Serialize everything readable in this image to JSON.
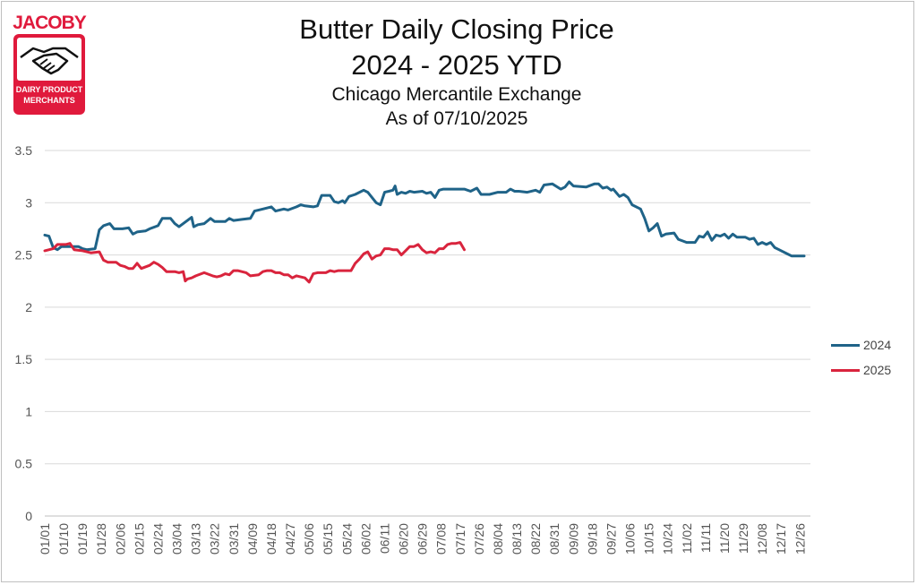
{
  "chart_data": {
    "type": "line",
    "title": "Butter Daily Closing Price",
    "title_line2": "2024 - 2025 YTD",
    "subtitle": "Chicago Mercantile Exchange",
    "subtitle_line2": "As of 07/10/2025",
    "xlabel": "",
    "ylabel": "",
    "ylim": [
      0,
      3.5
    ],
    "yticks": [
      "0",
      "0.5",
      "1",
      "1.5",
      "2",
      "2.5",
      "3",
      "3.5"
    ],
    "xlim": [
      0,
      365
    ],
    "xticks": [
      {
        "label": "01/01",
        "x": 0
      },
      {
        "label": "01/10",
        "x": 9
      },
      {
        "label": "01/19",
        "x": 18
      },
      {
        "label": "01/28",
        "x": 27
      },
      {
        "label": "02/06",
        "x": 36
      },
      {
        "label": "02/15",
        "x": 45
      },
      {
        "label": "02/24",
        "x": 54
      },
      {
        "label": "03/04",
        "x": 63
      },
      {
        "label": "03/13",
        "x": 72
      },
      {
        "label": "03/22",
        "x": 81
      },
      {
        "label": "03/31",
        "x": 90
      },
      {
        "label": "04/09",
        "x": 99
      },
      {
        "label": "04/18",
        "x": 108
      },
      {
        "label": "04/27",
        "x": 117
      },
      {
        "label": "05/06",
        "x": 126
      },
      {
        "label": "05/15",
        "x": 135
      },
      {
        "label": "05/24",
        "x": 144
      },
      {
        "label": "06/02",
        "x": 153
      },
      {
        "label": "06/11",
        "x": 162
      },
      {
        "label": "06/20",
        "x": 171
      },
      {
        "label": "06/29",
        "x": 180
      },
      {
        "label": "07/08",
        "x": 189
      },
      {
        "label": "07/17",
        "x": 198
      },
      {
        "label": "07/26",
        "x": 207
      },
      {
        "label": "08/04",
        "x": 216
      },
      {
        "label": "08/13",
        "x": 225
      },
      {
        "label": "08/22",
        "x": 234
      },
      {
        "label": "08/31",
        "x": 243
      },
      {
        "label": "09/09",
        "x": 252
      },
      {
        "label": "09/18",
        "x": 261
      },
      {
        "label": "09/27",
        "x": 270
      },
      {
        "label": "10/06",
        "x": 279
      },
      {
        "label": "10/15",
        "x": 288
      },
      {
        "label": "10/24",
        "x": 297
      },
      {
        "label": "11/02",
        "x": 306
      },
      {
        "label": "11/11",
        "x": 315
      },
      {
        "label": "11/20",
        "x": 324
      },
      {
        "label": "11/29",
        "x": 333
      },
      {
        "label": "12/08",
        "x": 342
      },
      {
        "label": "12/17",
        "x": 351
      },
      {
        "label": "12/26",
        "x": 360
      }
    ],
    "grid": true,
    "legend_position": "right",
    "series": [
      {
        "name": "2024",
        "color": "#1f6388",
        "points": [
          [
            0,
            2.69
          ],
          [
            2,
            2.68
          ],
          [
            4,
            2.57
          ],
          [
            6,
            2.55
          ],
          [
            8,
            2.58
          ],
          [
            12,
            2.58
          ],
          [
            16,
            2.58
          ],
          [
            18,
            2.56
          ],
          [
            20,
            2.55
          ],
          [
            24,
            2.56
          ],
          [
            26,
            2.74
          ],
          [
            28,
            2.78
          ],
          [
            31,
            2.8
          ],
          [
            33,
            2.75
          ],
          [
            37,
            2.75
          ],
          [
            40,
            2.76
          ],
          [
            42,
            2.7
          ],
          [
            44,
            2.72
          ],
          [
            48,
            2.73
          ],
          [
            50,
            2.75
          ],
          [
            54,
            2.78
          ],
          [
            56,
            2.85
          ],
          [
            60,
            2.85
          ],
          [
            62,
            2.8
          ],
          [
            64,
            2.77
          ],
          [
            66,
            2.8
          ],
          [
            70,
            2.86
          ],
          [
            71,
            2.77
          ],
          [
            73,
            2.79
          ],
          [
            76,
            2.8
          ],
          [
            79,
            2.85
          ],
          [
            81,
            2.82
          ],
          [
            86,
            2.82
          ],
          [
            88,
            2.85
          ],
          [
            90,
            2.83
          ],
          [
            94,
            2.84
          ],
          [
            98,
            2.85
          ],
          [
            100,
            2.92
          ],
          [
            104,
            2.94
          ],
          [
            108,
            2.96
          ],
          [
            110,
            2.92
          ],
          [
            114,
            2.94
          ],
          [
            116,
            2.93
          ],
          [
            120,
            2.96
          ],
          [
            122,
            2.98
          ],
          [
            124,
            2.97
          ],
          [
            128,
            2.96
          ],
          [
            130,
            2.97
          ],
          [
            132,
            3.07
          ],
          [
            136,
            3.07
          ],
          [
            138,
            3.01
          ],
          [
            140,
            3.0
          ],
          [
            142,
            3.02
          ],
          [
            143,
            3.0
          ],
          [
            145,
            3.06
          ],
          [
            148,
            3.08
          ],
          [
            152,
            3.12
          ],
          [
            154,
            3.1
          ],
          [
            158,
            3.0
          ],
          [
            160,
            2.98
          ],
          [
            162,
            3.1
          ],
          [
            164,
            3.11
          ],
          [
            166,
            3.12
          ],
          [
            167,
            3.16
          ],
          [
            168,
            3.08
          ],
          [
            170,
            3.1
          ],
          [
            172,
            3.09
          ],
          [
            174,
            3.11
          ],
          [
            176,
            3.1
          ],
          [
            180,
            3.11
          ],
          [
            182,
            3.09
          ],
          [
            184,
            3.1
          ],
          [
            186,
            3.05
          ],
          [
            188,
            3.12
          ],
          [
            190,
            3.13
          ],
          [
            195,
            3.13
          ],
          [
            200,
            3.13
          ],
          [
            203,
            3.11
          ],
          [
            206,
            3.14
          ],
          [
            208,
            3.08
          ],
          [
            212,
            3.08
          ],
          [
            216,
            3.1
          ],
          [
            220,
            3.1
          ],
          [
            222,
            3.13
          ],
          [
            224,
            3.11
          ],
          [
            226,
            3.11
          ],
          [
            230,
            3.1
          ],
          [
            234,
            3.12
          ],
          [
            236,
            3.1
          ],
          [
            238,
            3.17
          ],
          [
            242,
            3.18
          ],
          [
            246,
            3.13
          ],
          [
            248,
            3.15
          ],
          [
            250,
            3.2
          ],
          [
            252,
            3.16
          ],
          [
            258,
            3.15
          ],
          [
            262,
            3.18
          ],
          [
            264,
            3.18
          ],
          [
            266,
            3.14
          ],
          [
            268,
            3.15
          ],
          [
            270,
            3.12
          ],
          [
            271,
            3.13
          ],
          [
            274,
            3.06
          ],
          [
            276,
            3.08
          ],
          [
            278,
            3.05
          ],
          [
            280,
            2.98
          ],
          [
            284,
            2.94
          ],
          [
            286,
            2.85
          ],
          [
            288,
            2.73
          ],
          [
            290,
            2.76
          ],
          [
            292,
            2.8
          ],
          [
            294,
            2.68
          ],
          [
            296,
            2.7
          ],
          [
            300,
            2.71
          ],
          [
            302,
            2.65
          ],
          [
            306,
            2.62
          ],
          [
            310,
            2.62
          ],
          [
            312,
            2.68
          ],
          [
            314,
            2.67
          ],
          [
            316,
            2.72
          ],
          [
            318,
            2.64
          ],
          [
            320,
            2.69
          ],
          [
            322,
            2.68
          ],
          [
            324,
            2.7
          ],
          [
            326,
            2.66
          ],
          [
            328,
            2.7
          ],
          [
            330,
            2.67
          ],
          [
            334,
            2.67
          ],
          [
            336,
            2.65
          ],
          [
            338,
            2.66
          ],
          [
            340,
            2.6
          ],
          [
            342,
            2.62
          ],
          [
            344,
            2.6
          ],
          [
            346,
            2.62
          ],
          [
            348,
            2.57
          ],
          [
            350,
            2.55
          ],
          [
            354,
            2.51
          ],
          [
            356,
            2.49
          ],
          [
            360,
            2.49
          ],
          [
            362,
            2.49
          ]
        ]
      },
      {
        "name": "2025",
        "color": "#d9243d",
        "points": [
          [
            0,
            2.54
          ],
          [
            4,
            2.56
          ],
          [
            6,
            2.6
          ],
          [
            10,
            2.6
          ],
          [
            12,
            2.61
          ],
          [
            14,
            2.55
          ],
          [
            18,
            2.54
          ],
          [
            22,
            2.52
          ],
          [
            26,
            2.53
          ],
          [
            28,
            2.45
          ],
          [
            30,
            2.43
          ],
          [
            32,
            2.43
          ],
          [
            34,
            2.43
          ],
          [
            36,
            2.4
          ],
          [
            38,
            2.39
          ],
          [
            40,
            2.37
          ],
          [
            42,
            2.37
          ],
          [
            44,
            2.42
          ],
          [
            46,
            2.37
          ],
          [
            50,
            2.4
          ],
          [
            52,
            2.43
          ],
          [
            54,
            2.41
          ],
          [
            56,
            2.38
          ],
          [
            58,
            2.34
          ],
          [
            60,
            2.34
          ],
          [
            62,
            2.34
          ],
          [
            64,
            2.33
          ],
          [
            66,
            2.34
          ],
          [
            67,
            2.25
          ],
          [
            68,
            2.27
          ],
          [
            70,
            2.28
          ],
          [
            72,
            2.3
          ],
          [
            76,
            2.33
          ],
          [
            80,
            2.3
          ],
          [
            82,
            2.29
          ],
          [
            84,
            2.3
          ],
          [
            86,
            2.32
          ],
          [
            88,
            2.31
          ],
          [
            90,
            2.35
          ],
          [
            92,
            2.35
          ],
          [
            96,
            2.33
          ],
          [
            98,
            2.3
          ],
          [
            102,
            2.31
          ],
          [
            104,
            2.34
          ],
          [
            106,
            2.35
          ],
          [
            108,
            2.35
          ],
          [
            110,
            2.33
          ],
          [
            112,
            2.33
          ],
          [
            114,
            2.31
          ],
          [
            116,
            2.31
          ],
          [
            118,
            2.28
          ],
          [
            120,
            2.3
          ],
          [
            124,
            2.28
          ],
          [
            126,
            2.24
          ],
          [
            128,
            2.32
          ],
          [
            130,
            2.33
          ],
          [
            134,
            2.33
          ],
          [
            136,
            2.35
          ],
          [
            138,
            2.34
          ],
          [
            140,
            2.35
          ],
          [
            144,
            2.35
          ],
          [
            146,
            2.35
          ],
          [
            148,
            2.42
          ],
          [
            150,
            2.46
          ],
          [
            152,
            2.51
          ],
          [
            154,
            2.53
          ],
          [
            156,
            2.46
          ],
          [
            158,
            2.49
          ],
          [
            160,
            2.5
          ],
          [
            162,
            2.56
          ],
          [
            164,
            2.56
          ],
          [
            166,
            2.55
          ],
          [
            168,
            2.55
          ],
          [
            170,
            2.5
          ],
          [
            172,
            2.54
          ],
          [
            174,
            2.58
          ],
          [
            176,
            2.58
          ],
          [
            178,
            2.6
          ],
          [
            180,
            2.55
          ],
          [
            182,
            2.52
          ],
          [
            184,
            2.53
          ],
          [
            186,
            2.52
          ],
          [
            188,
            2.56
          ],
          [
            190,
            2.56
          ],
          [
            192,
            2.6
          ],
          [
            194,
            2.61
          ],
          [
            196,
            2.61
          ],
          [
            198,
            2.62
          ],
          [
            200,
            2.55
          ]
        ]
      }
    ]
  },
  "logo": {
    "brand": "JACOBY",
    "line1": "DAIRY PRODUCT",
    "line2": "MERCHANTS"
  }
}
